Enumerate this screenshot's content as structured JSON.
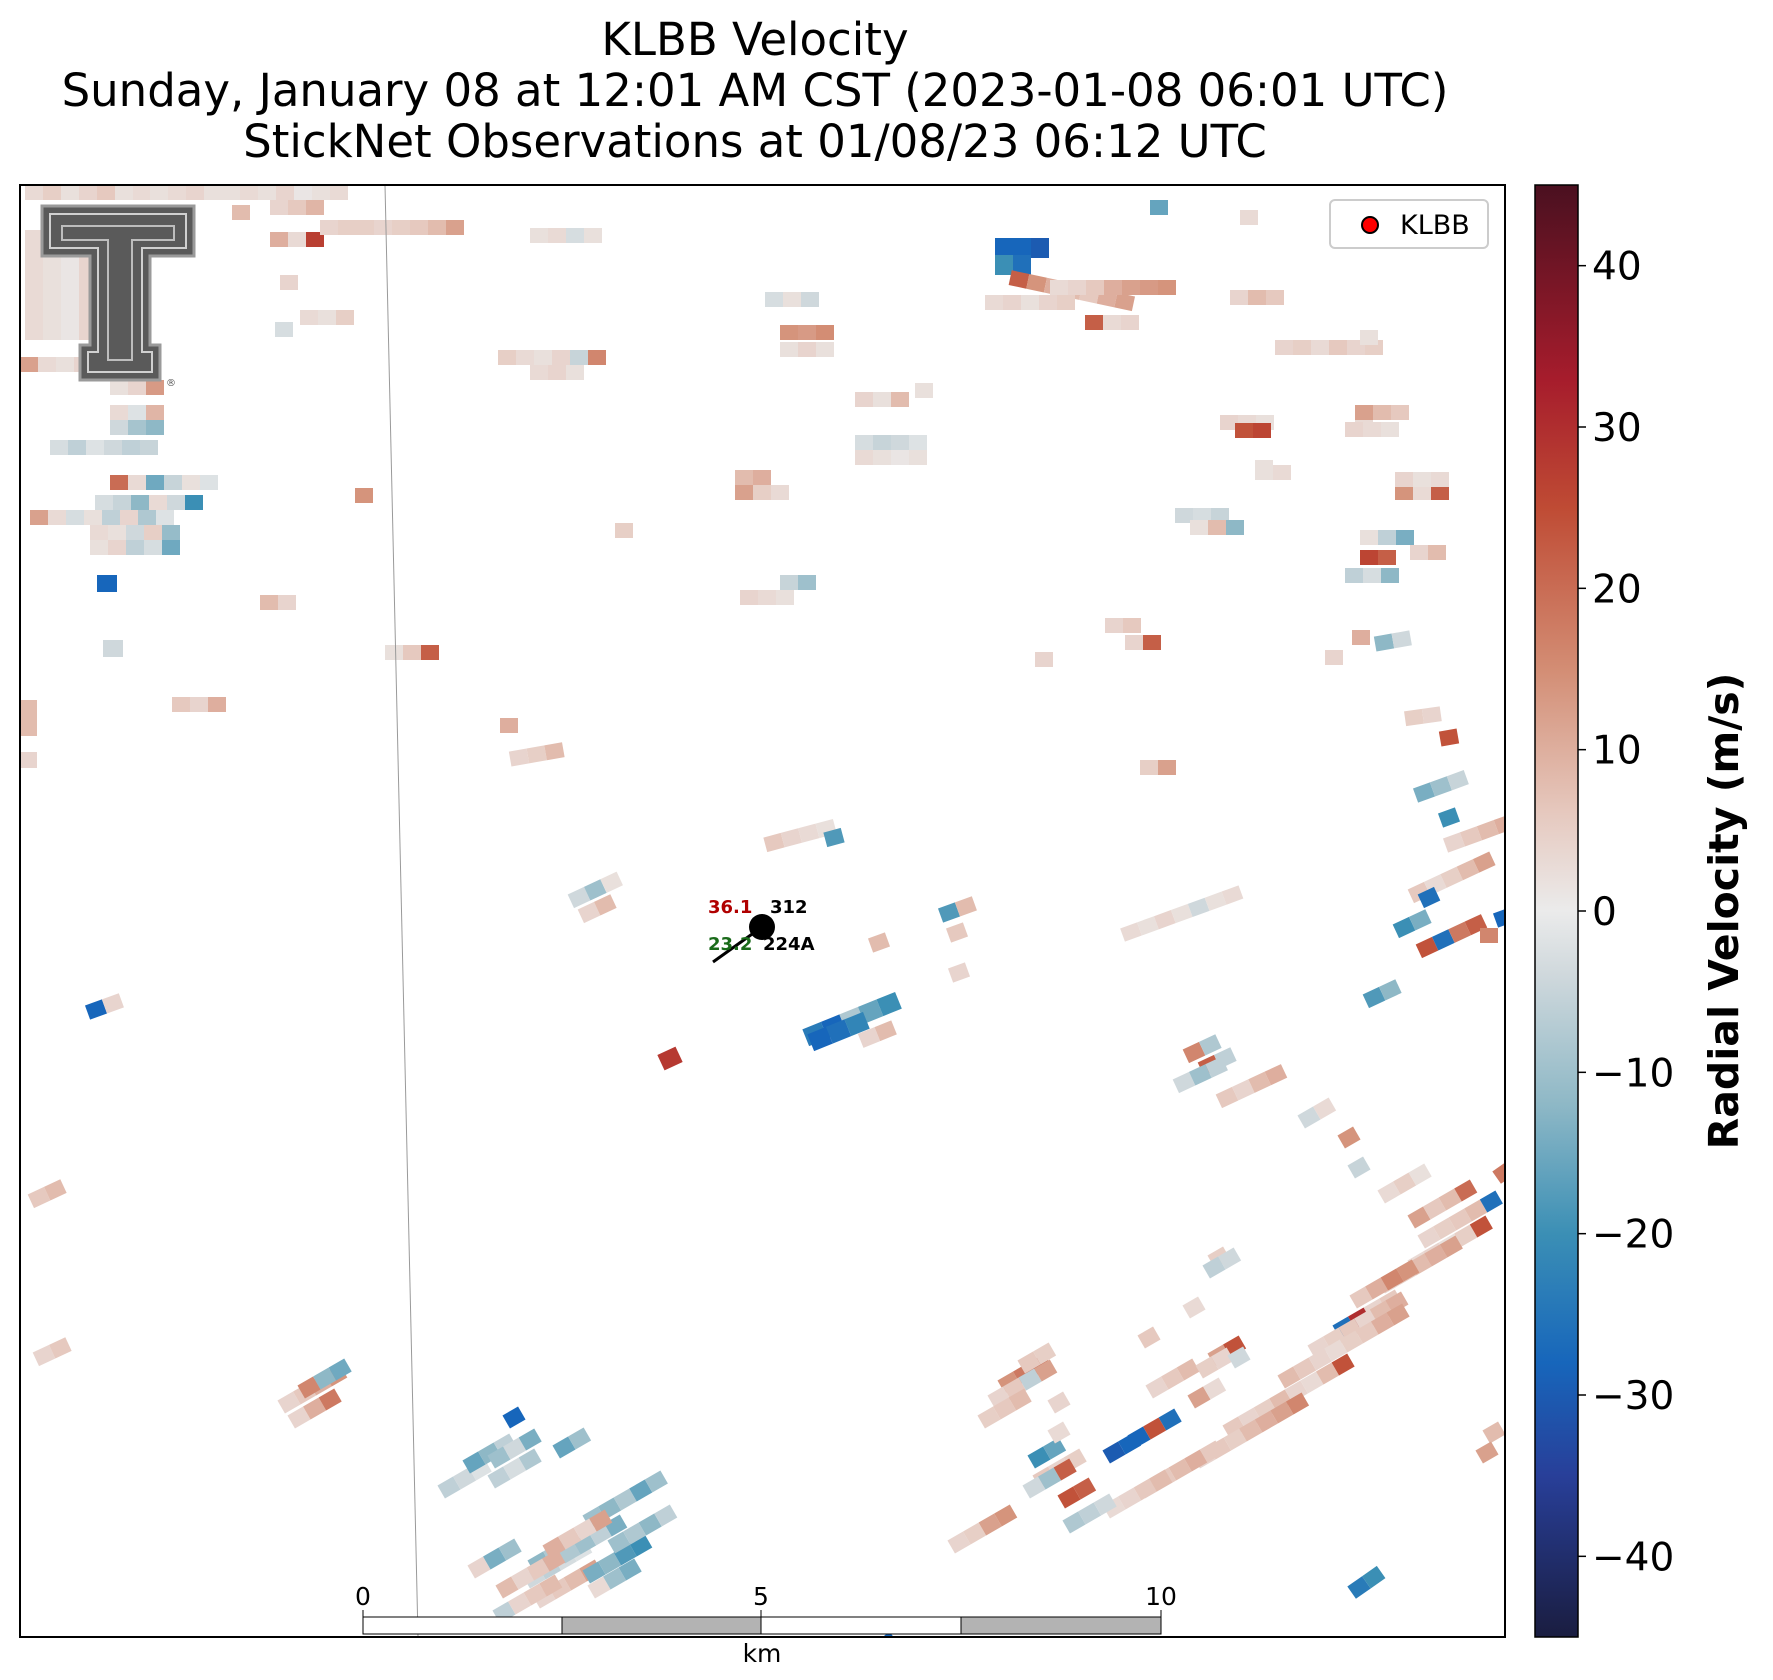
{
  "titles": {
    "line1": "KLBB Velocity",
    "line2": "Sunday, January 08 at 12:01 AM CST (2023-01-08 06:01 UTC)",
    "line3": "StickNet Observations at 01/08/23 06:12 UTC"
  },
  "legend": {
    "label": "KLBB",
    "marker_color": "#ff0000"
  },
  "colorbar": {
    "label": "Radial Velocity (m/s)",
    "ticks": [
      "40",
      "30",
      "20",
      "10",
      "0",
      "−10",
      "−20",
      "−30",
      "−40"
    ],
    "range": [
      -45,
      45
    ],
    "stops": [
      {
        "value": -45,
        "color": "#1a1d40"
      },
      {
        "value": -35,
        "color": "#283f99"
      },
      {
        "value": -28,
        "color": "#1766bb"
      },
      {
        "value": -20,
        "color": "#3b8fb5"
      },
      {
        "value": -12,
        "color": "#8eb8c6"
      },
      {
        "value": -4,
        "color": "#cfd8dc"
      },
      {
        "value": 0,
        "color": "#ebebeb"
      },
      {
        "value": 6,
        "color": "#e6c9bf"
      },
      {
        "value": 15,
        "color": "#d38d74"
      },
      {
        "value": 25,
        "color": "#bf4b34"
      },
      {
        "value": 33,
        "color": "#a61c2c"
      },
      {
        "value": 45,
        "color": "#4a1020"
      }
    ]
  },
  "scale_bar": {
    "ticks": [
      "0",
      "5",
      "10"
    ],
    "unit": "km"
  },
  "station": {
    "wind_speed": "36.1",
    "wind_dir": "312",
    "dewpoint_value": "23.2",
    "station_id": "224A",
    "speed_color": "#b00000",
    "dewpoint_color": "#1a6b1a"
  },
  "logo": {
    "text": "TT",
    "symbol": "®"
  }
}
